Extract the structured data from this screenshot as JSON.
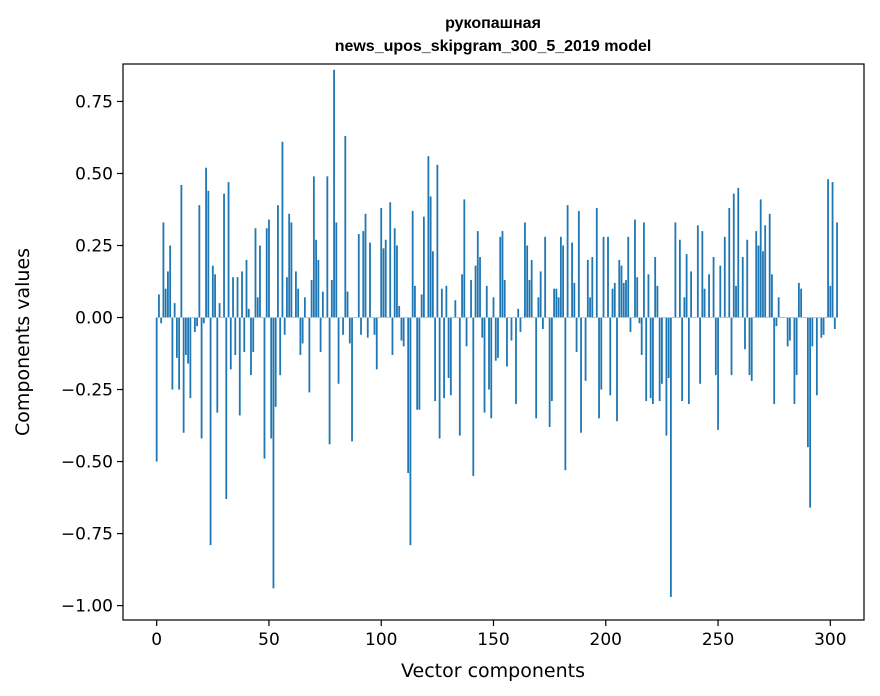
{
  "chart_data": {
    "type": "bar",
    "title_line1": "рукопашная",
    "title_line2": "news_upos_skipgram_300_5_2019 model",
    "xlabel": "Vector components",
    "ylabel": "Components values",
    "xlim": [
      -15,
      315
    ],
    "ylim": [
      -1.05,
      0.88
    ],
    "xticks": [
      0,
      50,
      100,
      150,
      200,
      250,
      300
    ],
    "xtick_labels": [
      "0",
      "50",
      "100",
      "150",
      "200",
      "250",
      "300"
    ],
    "yticks": [
      -1.0,
      -0.75,
      -0.5,
      -0.25,
      0.0,
      0.25,
      0.5,
      0.75
    ],
    "ytick_labels": [
      "−1.00",
      "−0.75",
      "−0.50",
      "−0.25",
      "0.00",
      "0.25",
      "0.50",
      "0.75"
    ],
    "bar_color": "#1f77b4",
    "values": [
      -0.5,
      0.08,
      -0.02,
      0.33,
      0.1,
      0.16,
      0.25,
      -0.25,
      0.05,
      -0.14,
      -0.25,
      0.46,
      -0.4,
      -0.13,
      -0.16,
      -0.28,
      0.0,
      -0.05,
      -0.03,
      0.39,
      -0.42,
      -0.02,
      0.52,
      0.44,
      -0.79,
      0.18,
      0.15,
      -0.33,
      0.05,
      0.0,
      0.43,
      -0.63,
      0.47,
      -0.18,
      0.14,
      -0.13,
      0.14,
      -0.34,
      0.16,
      -0.12,
      0.2,
      0.03,
      -0.2,
      -0.12,
      0.31,
      0.07,
      0.25,
      0.0,
      -0.49,
      0.31,
      0.34,
      -0.42,
      -0.94,
      -0.31,
      0.39,
      -0.2,
      0.61,
      -0.06,
      0.14,
      0.36,
      0.33,
      0.0,
      0.16,
      0.1,
      -0.13,
      -0.09,
      0.07,
      0.0,
      -0.26,
      0.13,
      0.49,
      0.27,
      0.2,
      -0.12,
      0.09,
      0.0,
      0.49,
      -0.44,
      0.13,
      0.86,
      0.33,
      -0.23,
      0.0,
      -0.06,
      0.63,
      0.09,
      -0.09,
      -0.43,
      0.0,
      0.0,
      0.29,
      -0.06,
      0.3,
      0.36,
      -0.07,
      0.26,
      0.0,
      -0.06,
      -0.18,
      0.0,
      0.38,
      0.24,
      0.27,
      0.0,
      0.4,
      -0.13,
      0.31,
      0.25,
      0.04,
      -0.08,
      -0.1,
      0.0,
      -0.54,
      -0.79,
      0.37,
      0.11,
      -0.32,
      -0.32,
      0.08,
      0.35,
      0.0,
      0.56,
      0.42,
      0.23,
      -0.29,
      0.53,
      -0.42,
      0.1,
      -0.28,
      0.11,
      -0.21,
      -0.27,
      0.0,
      0.06,
      0.0,
      -0.41,
      0.15,
      0.41,
      -0.1,
      0.0,
      0.13,
      -0.55,
      0.18,
      0.3,
      0.21,
      -0.07,
      -0.33,
      0.11,
      -0.25,
      -0.35,
      0.07,
      -0.15,
      -0.14,
      0.28,
      0.3,
      0.13,
      -0.17,
      0.0,
      -0.08,
      0.0,
      -0.3,
      0.03,
      -0.05,
      0.0,
      0.33,
      0.25,
      0.13,
      0.2,
      0.0,
      -0.35,
      0.07,
      0.16,
      -0.04,
      0.28,
      0.0,
      -0.38,
      -0.29,
      0.1,
      0.1,
      0.07,
      0.28,
      0.25,
      -0.53,
      0.39,
      0.0,
      0.26,
      0.12,
      -0.12,
      0.37,
      -0.4,
      0.0,
      -0.22,
      0.2,
      0.07,
      0.21,
      0.0,
      0.38,
      -0.35,
      -0.25,
      0.28,
      0.0,
      0.28,
      -0.27,
      0.1,
      0.12,
      -0.36,
      0.2,
      0.18,
      0.12,
      0.13,
      0.28,
      -0.05,
      0.0,
      0.34,
      0.14,
      -0.02,
      -0.13,
      0.33,
      -0.29,
      0.15,
      -0.28,
      -0.3,
      0.21,
      0.11,
      -0.29,
      -0.23,
      0.0,
      -0.41,
      -0.21,
      -0.97,
      0.0,
      0.33,
      0.0,
      0.27,
      -0.29,
      0.07,
      0.22,
      -0.3,
      0.16,
      0.0,
      0.0,
      0.32,
      -0.23,
      0.3,
      0.1,
      0.0,
      0.15,
      0.0,
      0.21,
      -0.2,
      -0.39,
      0.18,
      0.0,
      0.28,
      0.0,
      0.38,
      -0.2,
      0.43,
      0.11,
      0.45,
      0.0,
      0.21,
      -0.11,
      0.27,
      -0.2,
      -0.22,
      0.0,
      0.3,
      0.25,
      0.41,
      0.23,
      0.32,
      0.0,
      0.36,
      0.15,
      -0.3,
      -0.03,
      0.07,
      0.0,
      0.0,
      0.0,
      -0.1,
      -0.08,
      0.0,
      -0.3,
      -0.2,
      0.12,
      0.1,
      0.0,
      0.0,
      -0.45,
      -0.66,
      -0.1,
      0.0,
      -0.27,
      0.0,
      -0.07,
      -0.06,
      0.0,
      0.48,
      0.11,
      0.47,
      -0.04,
      0.33
    ]
  }
}
